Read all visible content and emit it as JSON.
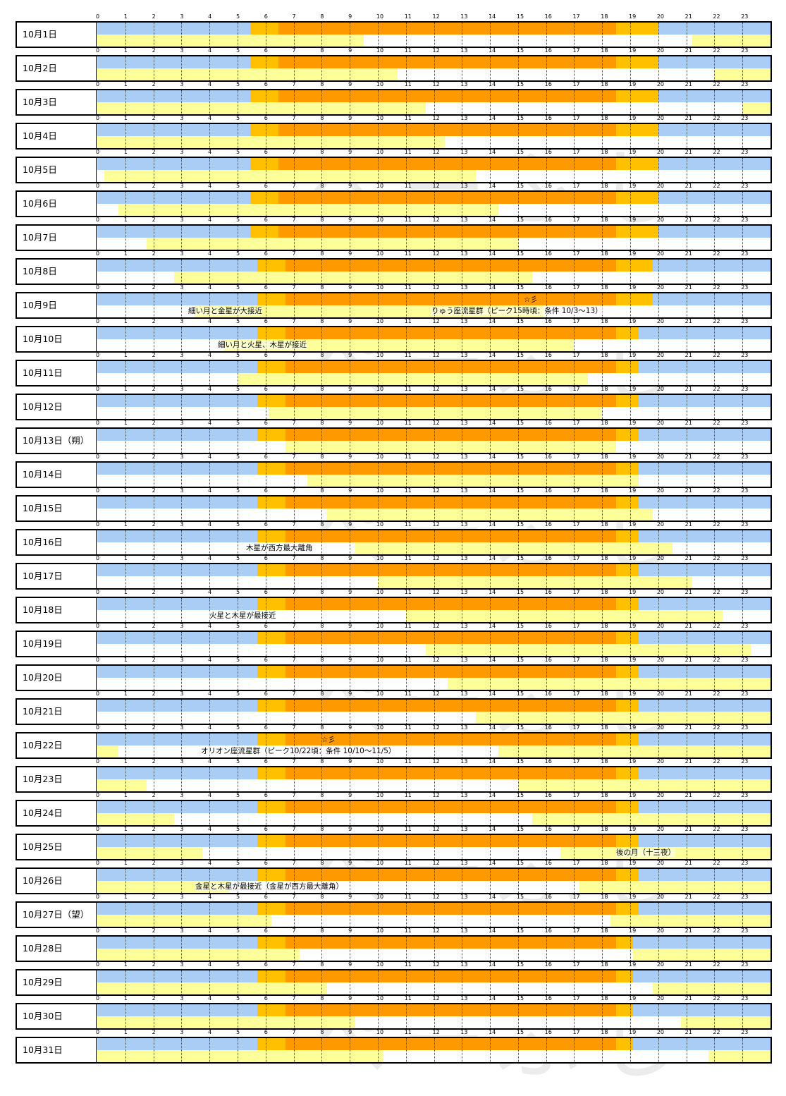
{
  "hour_labels": [
    "0",
    "1",
    "2",
    "3",
    "4",
    "5",
    "6",
    "7",
    "8",
    "9",
    "10",
    "11",
    "12",
    "13",
    "14",
    "15",
    "16",
    "17",
    "18",
    "19",
    "20",
    "21",
    "22",
    "23"
  ],
  "watermark": "ぺーぶし",
  "colors": {
    "night": "#a9cdf5",
    "twilight": "#ffc000",
    "daylight": "#ff9900",
    "moon": "#ffff99",
    "border": "#000000"
  },
  "days": [
    {
      "label": "10月1日",
      "sun": [
        5.45,
        6.45,
        17.95,
        18.5,
        20.0
      ],
      "moon": [
        [
          0,
          9.5
        ],
        [
          21.2,
          24
        ]
      ],
      "notes": []
    },
    {
      "label": "10月2日",
      "sun": [
        5.45,
        6.45,
        17.95,
        18.5,
        20.0
      ],
      "moon": [
        [
          0,
          10.7
        ],
        [
          22.0,
          24
        ]
      ],
      "notes": []
    },
    {
      "label": "10月3日",
      "sun": [
        5.45,
        6.45,
        17.95,
        18.5,
        20.0
      ],
      "moon": [
        [
          0,
          11.7
        ],
        [
          23.0,
          24
        ]
      ],
      "notes": []
    },
    {
      "label": "10月4日",
      "sun": [
        5.45,
        6.45,
        17.95,
        18.5,
        20.0
      ],
      "moon": [
        [
          0,
          12.4
        ]
      ],
      "notes": []
    },
    {
      "label": "10月5日",
      "sun": [
        5.45,
        6.45,
        17.95,
        18.5,
        20.0
      ],
      "moon": [
        [
          0.25,
          13.5
        ]
      ],
      "notes": []
    },
    {
      "label": "10月6日",
      "sun": [
        5.45,
        6.45,
        17.95,
        18.5,
        20.0
      ],
      "moon": [
        [
          0.75,
          14.3
        ]
      ],
      "notes": []
    },
    {
      "label": "10月7日",
      "sun": [
        5.45,
        6.45,
        17.95,
        18.5,
        20.0
      ],
      "moon": [
        [
          1.75,
          15.0
        ]
      ],
      "notes": []
    },
    {
      "label": "10月8日",
      "sun": [
        5.7,
        6.7,
        17.95,
        18.5,
        19.8
      ],
      "moon": [
        [
          2.75,
          15.5
        ]
      ],
      "notes": []
    },
    {
      "label": "10月9日",
      "sun": [
        5.7,
        6.7,
        17.95,
        18.5,
        19.8
      ],
      "moon": [
        [
          3.5,
          15.9
        ]
      ],
      "notes": [
        {
          "text": "細い月と金星が大接近",
          "at": 3.25
        },
        {
          "text": "☆彡",
          "at": 15.2,
          "row": "top"
        },
        {
          "text": "りゅう座流星群（ピーク15時頃：条件 10/3～13）",
          "at": 11.9
        }
      ]
    },
    {
      "label": "10月10日",
      "sun": [
        5.7,
        6.7,
        17.95,
        18.5,
        19.3
      ],
      "moon": [
        [
          4.5,
          17.0
        ]
      ],
      "notes": [
        {
          "text": "細い月と火星、木星が接近",
          "at": 4.3
        }
      ]
    },
    {
      "label": "10月11日",
      "sun": [
        5.7,
        6.7,
        17.95,
        18.5,
        19.3
      ],
      "moon": [
        [
          5.0,
          17.5
        ]
      ],
      "notes": []
    },
    {
      "label": "10月12日",
      "sun": [
        5.7,
        6.7,
        17.95,
        18.5,
        19.3
      ],
      "moon": [
        [
          6.1,
          18.0
        ]
      ],
      "notes": []
    },
    {
      "label": "10月13日（朔）",
      "sun": [
        5.7,
        6.7,
        17.95,
        18.5,
        19.3
      ],
      "moon": [
        [
          6.7,
          18.5
        ]
      ],
      "notes": []
    },
    {
      "label": "10月14日",
      "sun": [
        5.7,
        6.7,
        17.95,
        18.5,
        19.3
      ],
      "moon": [
        [
          7.5,
          19.3
        ]
      ],
      "notes": []
    },
    {
      "label": "10月15日",
      "sun": [
        5.7,
        6.7,
        17.95,
        18.5,
        19.3
      ],
      "moon": [
        [
          8.2,
          19.8
        ]
      ],
      "notes": []
    },
    {
      "label": "10月16日",
      "sun": [
        5.7,
        6.7,
        17.95,
        18.5,
        19.3
      ],
      "moon": [
        [
          9.2,
          20.5
        ]
      ],
      "notes": [
        {
          "text": "木星が西方最大離角",
          "at": 5.3
        }
      ]
    },
    {
      "label": "10月17日",
      "sun": [
        5.7,
        6.7,
        17.95,
        18.5,
        19.3
      ],
      "moon": [
        [
          10.0,
          21.2
        ]
      ],
      "notes": []
    },
    {
      "label": "10月18日",
      "sun": [
        5.7,
        6.7,
        17.95,
        18.5,
        19.3
      ],
      "moon": [
        [
          11.0,
          22.3
        ]
      ],
      "notes": [
        {
          "text": "火星と木星が最接近",
          "at": 4.0
        }
      ]
    },
    {
      "label": "10月19日",
      "sun": [
        5.7,
        6.7,
        17.95,
        18.5,
        19.3
      ],
      "moon": [
        [
          11.7,
          23.3
        ]
      ],
      "notes": []
    },
    {
      "label": "10月20日",
      "sun": [
        5.7,
        6.7,
        17.95,
        18.5,
        19.3
      ],
      "moon": [
        [
          12.5,
          24
        ]
      ],
      "notes": []
    },
    {
      "label": "10月21日",
      "sun": [
        5.7,
        6.7,
        17.95,
        18.5,
        19.3
      ],
      "moon": [
        [
          13.5,
          24
        ]
      ],
      "notes": []
    },
    {
      "label": "10月22日",
      "sun": [
        5.7,
        6.7,
        17.95,
        18.5,
        19.3
      ],
      "moon": [
        [
          0,
          0.75
        ],
        [
          14.3,
          24
        ]
      ],
      "notes": [
        {
          "text": "☆彡",
          "at": 8.0,
          "row": "top"
        },
        {
          "text": "オリオン座流星群（ピーク10/22頃：条件 10/10～11/5）",
          "at": 3.7
        }
      ]
    },
    {
      "label": "10月23日",
      "sun": [
        5.7,
        6.7,
        17.95,
        18.5,
        19.3
      ],
      "moon": [
        [
          0,
          1.75
        ],
        [
          15.0,
          24
        ]
      ],
      "notes": []
    },
    {
      "label": "10月24日",
      "sun": [
        5.7,
        6.7,
        17.95,
        18.5,
        19.3
      ],
      "moon": [
        [
          0,
          2.75
        ],
        [
          15.5,
          24
        ]
      ],
      "notes": []
    },
    {
      "label": "10月25日",
      "sun": [
        5.7,
        6.7,
        17.95,
        18.5,
        19.3
      ],
      "moon": [
        [
          0,
          3.75
        ],
        [
          16.5,
          24
        ]
      ],
      "notes": [
        {
          "text": "後の月（十三夜）",
          "at": 18.5
        }
      ]
    },
    {
      "label": "10月26日",
      "sun": [
        5.7,
        6.7,
        17.95,
        18.5,
        19.3
      ],
      "moon": [
        [
          0,
          4.7
        ],
        [
          17.2,
          24
        ]
      ],
      "notes": [
        {
          "text": "金星と木星が最接近（金星が西方最大離角）",
          "at": 3.5
        }
      ]
    },
    {
      "label": "10月27日（望）",
      "sun": [
        5.7,
        6.7,
        17.95,
        18.5,
        19.3
      ],
      "moon": [
        [
          0,
          6.2
        ],
        [
          18.3,
          24
        ]
      ],
      "notes": []
    },
    {
      "label": "10月28日",
      "sun": [
        5.7,
        6.7,
        17.95,
        18.5,
        19.1
      ],
      "moon": [
        [
          0,
          7.2
        ],
        [
          19.1,
          24
        ]
      ],
      "notes": []
    },
    {
      "label": "10月29日",
      "sun": [
        5.7,
        6.7,
        17.95,
        18.5,
        19.1
      ],
      "moon": [
        [
          0,
          8.2
        ],
        [
          19.8,
          24
        ]
      ],
      "notes": []
    },
    {
      "label": "10月30日",
      "sun": [
        5.7,
        6.7,
        17.95,
        18.5,
        19.1
      ],
      "moon": [
        [
          0,
          9.2
        ],
        [
          20.8,
          24
        ]
      ],
      "notes": []
    },
    {
      "label": "10月31日",
      "sun": [
        5.7,
        6.7,
        17.95,
        18.5,
        19.1
      ],
      "moon": [
        [
          0,
          10.2
        ],
        [
          21.8,
          24
        ]
      ],
      "notes": []
    }
  ]
}
